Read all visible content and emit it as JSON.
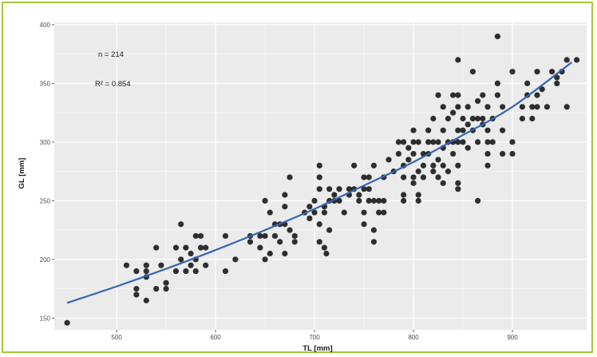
{
  "colors": {
    "frame_border": "#a5c63b",
    "panel_bg": "#ebebeb",
    "grid": "#ffffff",
    "points": "#1a1a1a",
    "curve": "#3366b5"
  },
  "chart_data": {
    "type": "scatter",
    "xlabel": "TL [mm]",
    "ylabel": "GL [mm]",
    "xlim": [
      437,
      975
    ],
    "ylim": [
      140,
      402
    ],
    "xticks": [
      500,
      600,
      700,
      800,
      900
    ],
    "xtick_labels": [
      "500",
      "600",
      "700",
      "800",
      "900"
    ],
    "yticks": [
      150,
      200,
      250,
      300,
      350,
      400
    ],
    "ytick_labels": [
      "150",
      "200",
      "250",
      "300",
      "350",
      "400"
    ],
    "grid": true,
    "legend": "none",
    "annotations": {
      "n": "n = 214",
      "r2": "R² = 0.854"
    },
    "fit_curve": {
      "x": [
        450,
        500,
        550,
        600,
        650,
        700,
        750,
        800,
        850,
        900,
        960
      ],
      "y": [
        163,
        177,
        192,
        208,
        225,
        243,
        263,
        283,
        306,
        330,
        368
      ]
    },
    "points": [
      [
        450,
        146
      ],
      [
        510,
        195
      ],
      [
        520,
        190
      ],
      [
        520,
        175
      ],
      [
        520,
        170
      ],
      [
        530,
        195
      ],
      [
        530,
        190
      ],
      [
        530,
        185
      ],
      [
        530,
        165
      ],
      [
        540,
        210
      ],
      [
        540,
        175
      ],
      [
        545,
        195
      ],
      [
        550,
        180
      ],
      [
        550,
        175
      ],
      [
        560,
        210
      ],
      [
        560,
        190
      ],
      [
        565,
        230
      ],
      [
        565,
        200
      ],
      [
        570,
        190
      ],
      [
        570,
        210
      ],
      [
        575,
        195
      ],
      [
        575,
        205
      ],
      [
        580,
        220
      ],
      [
        580,
        200
      ],
      [
        580,
        190
      ],
      [
        585,
        220
      ],
      [
        585,
        210
      ],
      [
        590,
        195
      ],
      [
        590,
        210
      ],
      [
        610,
        220
      ],
      [
        610,
        190
      ],
      [
        620,
        200
      ],
      [
        635,
        220
      ],
      [
        635,
        215
      ],
      [
        645,
        220
      ],
      [
        645,
        210
      ],
      [
        650,
        250
      ],
      [
        650,
        220
      ],
      [
        650,
        200
      ],
      [
        655,
        240
      ],
      [
        655,
        205
      ],
      [
        660,
        230
      ],
      [
        660,
        220
      ],
      [
        665,
        230
      ],
      [
        665,
        215
      ],
      [
        670,
        255
      ],
      [
        670,
        245
      ],
      [
        670,
        230
      ],
      [
        670,
        205
      ],
      [
        675,
        270
      ],
      [
        675,
        225
      ],
      [
        680,
        220
      ],
      [
        680,
        215
      ],
      [
        690,
        240
      ],
      [
        695,
        245
      ],
      [
        695,
        235
      ],
      [
        700,
        250
      ],
      [
        700,
        240
      ],
      [
        705,
        280
      ],
      [
        705,
        270
      ],
      [
        705,
        260
      ],
      [
        705,
        230
      ],
      [
        705,
        215
      ],
      [
        710,
        245
      ],
      [
        710,
        240
      ],
      [
        710,
        210
      ],
      [
        712,
        205
      ],
      [
        715,
        260
      ],
      [
        715,
        250
      ],
      [
        715,
        225
      ],
      [
        720,
        255
      ],
      [
        720,
        250
      ],
      [
        725,
        260
      ],
      [
        725,
        250
      ],
      [
        730,
        240
      ],
      [
        735,
        260
      ],
      [
        735,
        255
      ],
      [
        740,
        280
      ],
      [
        740,
        260
      ],
      [
        745,
        255
      ],
      [
        745,
        250
      ],
      [
        750,
        270
      ],
      [
        750,
        260
      ],
      [
        750,
        240
      ],
      [
        750,
        230
      ],
      [
        755,
        270
      ],
      [
        755,
        260
      ],
      [
        755,
        250
      ],
      [
        760,
        280
      ],
      [
        760,
        250
      ],
      [
        760,
        225
      ],
      [
        760,
        215
      ],
      [
        765,
        250
      ],
      [
        765,
        240
      ],
      [
        770,
        270
      ],
      [
        770,
        250
      ],
      [
        770,
        240
      ],
      [
        775,
        285
      ],
      [
        780,
        275
      ],
      [
        785,
        300
      ],
      [
        785,
        290
      ],
      [
        790,
        300
      ],
      [
        790,
        280
      ],
      [
        790,
        270
      ],
      [
        790,
        255
      ],
      [
        790,
        250
      ],
      [
        795,
        295
      ],
      [
        795,
        285
      ],
      [
        800,
        310
      ],
      [
        800,
        300
      ],
      [
        800,
        290
      ],
      [
        800,
        270
      ],
      [
        800,
        265
      ],
      [
        805,
        300
      ],
      [
        805,
        275
      ],
      [
        805,
        255
      ],
      [
        805,
        250
      ],
      [
        810,
        290
      ],
      [
        810,
        280
      ],
      [
        810,
        270
      ],
      [
        815,
        310
      ],
      [
        815,
        300
      ],
      [
        815,
        290
      ],
      [
        820,
        320
      ],
      [
        820,
        300
      ],
      [
        820,
        280
      ],
      [
        820,
        275
      ],
      [
        825,
        340
      ],
      [
        825,
        300
      ],
      [
        825,
        285
      ],
      [
        825,
        270
      ],
      [
        830,
        330
      ],
      [
        830,
        310
      ],
      [
        830,
        295
      ],
      [
        830,
        280
      ],
      [
        830,
        265
      ],
      [
        835,
        320
      ],
      [
        835,
        300
      ],
      [
        835,
        275
      ],
      [
        840,
        340
      ],
      [
        840,
        325
      ],
      [
        840,
        300
      ],
      [
        840,
        290
      ],
      [
        845,
        370
      ],
      [
        845,
        340
      ],
      [
        845,
        330
      ],
      [
        845,
        310
      ],
      [
        845,
        300
      ],
      [
        845,
        280
      ],
      [
        845,
        265
      ],
      [
        845,
        260
      ],
      [
        850,
        320
      ],
      [
        850,
        310
      ],
      [
        850,
        300
      ],
      [
        855,
        330
      ],
      [
        855,
        315
      ],
      [
        855,
        295
      ],
      [
        860,
        360
      ],
      [
        860,
        320
      ],
      [
        860,
        310
      ],
      [
        865,
        335
      ],
      [
        865,
        320
      ],
      [
        865,
        300
      ],
      [
        865,
        250
      ],
      [
        870,
        340
      ],
      [
        870,
        320
      ],
      [
        870,
        315
      ],
      [
        875,
        330
      ],
      [
        875,
        310
      ],
      [
        875,
        300
      ],
      [
        875,
        290
      ],
      [
        875,
        280
      ],
      [
        880,
        320
      ],
      [
        880,
        300
      ],
      [
        885,
        390
      ],
      [
        885,
        350
      ],
      [
        885,
        340
      ],
      [
        890,
        330
      ],
      [
        890,
        310
      ],
      [
        890,
        290
      ],
      [
        900,
        360
      ],
      [
        900,
        300
      ],
      [
        900,
        290
      ],
      [
        910,
        330
      ],
      [
        910,
        320
      ],
      [
        915,
        350
      ],
      [
        915,
        340
      ],
      [
        920,
        330
      ],
      [
        920,
        320
      ],
      [
        925,
        360
      ],
      [
        925,
        340
      ],
      [
        925,
        330
      ],
      [
        930,
        345
      ],
      [
        935,
        330
      ],
      [
        940,
        360
      ],
      [
        945,
        355
      ],
      [
        945,
        350
      ],
      [
        950,
        360
      ],
      [
        955,
        370
      ],
      [
        955,
        330
      ],
      [
        965,
        370
      ]
    ]
  }
}
